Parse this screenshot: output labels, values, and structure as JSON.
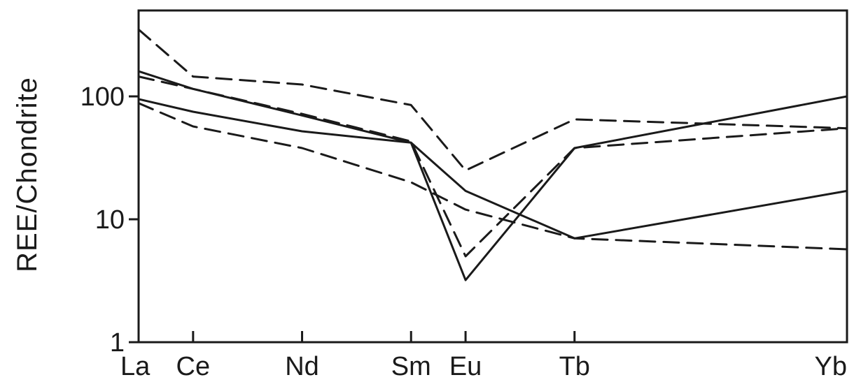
{
  "chart_data": {
    "type": "line",
    "title": "",
    "xlabel": "",
    "ylabel": "REE/Chondrite",
    "categories": [
      "La",
      "Ce",
      "Nd",
      "Sm",
      "Eu",
      "Tb",
      "Yb"
    ],
    "x_positions": [
      57,
      58,
      60,
      62,
      63,
      65,
      70
    ],
    "xlim": [
      57,
      70
    ],
    "y_scale": "log",
    "ylim": [
      1,
      500
    ],
    "y_ticks": [
      1,
      10,
      100
    ],
    "y_tick_labels": [
      "1",
      "10",
      "100"
    ],
    "grid": false,
    "legend": "none",
    "series": [
      {
        "style": "dashed",
        "values": [
          350,
          145,
          125,
          85,
          25,
          65,
          55
        ]
      },
      {
        "style": "solid",
        "values": [
          160,
          115,
          70,
          42,
          17,
          7,
          17
        ]
      },
      {
        "style": "dashed",
        "values": [
          145,
          115,
          72,
          43,
          5,
          38,
          55
        ]
      },
      {
        "style": "solid",
        "values": [
          95,
          75,
          52,
          42,
          3.2,
          38,
          100
        ]
      },
      {
        "style": "dashed",
        "values": [
          88,
          57,
          38,
          20,
          12,
          7,
          5.7
        ]
      }
    ]
  }
}
